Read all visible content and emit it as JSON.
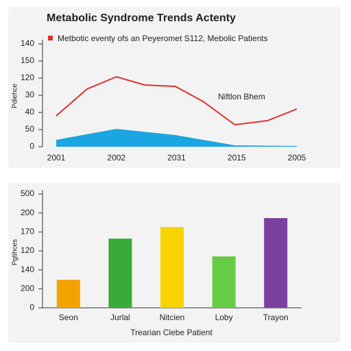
{
  "chart_data": [
    {
      "type": "line",
      "title": "Metabolic Syndrome Trends Actenty",
      "ylabel": "Pdiehce",
      "annotation": "Niftlon Bhem",
      "xlim": [
        0,
        4
      ],
      "xticks": [
        {
          "value": 0,
          "label": "2001"
        },
        {
          "value": 1,
          "label": "2002"
        },
        {
          "value": 2,
          "label": "2031"
        },
        {
          "value": 3,
          "label": "2015"
        },
        {
          "value": 4,
          "label": "2005"
        }
      ],
      "ylim": [
        0,
        6
      ],
      "yticks": [
        {
          "value": 0,
          "label": "0"
        },
        {
          "value": 1,
          "label": "50"
        },
        {
          "value": 2,
          "label": "40"
        },
        {
          "value": 3,
          "label": "30"
        },
        {
          "value": 4,
          "label": "120"
        },
        {
          "value": 5,
          "label": "150"
        },
        {
          "value": 6,
          "label": "140"
        }
      ],
      "series": [
        {
          "name": "Metbotic eventy ofs an Peyeromet S112, Mebolic Patients",
          "color": "#e0302a",
          "x": [
            0,
            0.51,
            1,
            1.47,
            1.98,
            2.44,
            2.97,
            3.51,
            4
          ],
          "values": [
            1.8,
            3.36,
            4.08,
            3.6,
            3.52,
            2.64,
            1.28,
            1.52,
            2.2
          ]
        },
        {
          "color": "#1aa6e0",
          "area": true,
          "x": [
            0,
            1,
            1.98,
            2.97,
            4
          ],
          "values": [
            0.4,
            1.04,
            0.68,
            0.08,
            0.04
          ]
        }
      ]
    },
    {
      "type": "bar",
      "xlabel": "Trearian Clebe Patient",
      "ylabel": "Pgtihces",
      "categories": [
        "Seon",
        "Jurlal",
        "Nitcien",
        "Loby",
        "Trayon"
      ],
      "values": [
        1.48,
        3.65,
        4.26,
        2.71,
        4.73
      ],
      "colors": [
        "#f5a300",
        "#3aaa3a",
        "#f7d400",
        "#66cc44",
        "#7b3fa0"
      ],
      "ylim": [
        0,
        6
      ],
      "yticks": [
        {
          "value": 0,
          "label": "0"
        },
        {
          "value": 1,
          "label": "200"
        },
        {
          "value": 2,
          "label": "140"
        },
        {
          "value": 3,
          "label": "120"
        },
        {
          "value": 4,
          "label": "170"
        },
        {
          "value": 5,
          "label": "200"
        },
        {
          "value": 6,
          "label": "500"
        }
      ]
    }
  ]
}
